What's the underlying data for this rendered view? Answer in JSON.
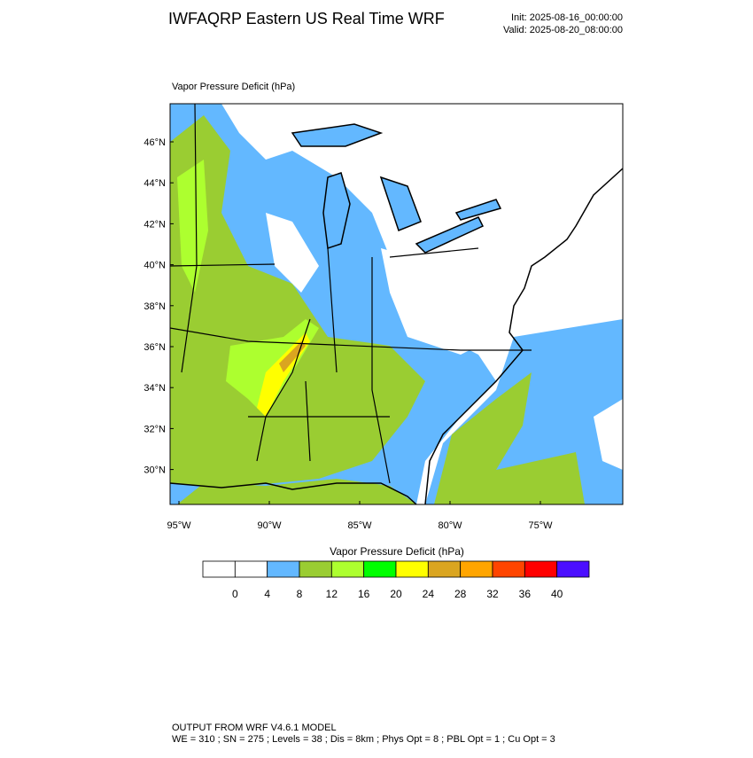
{
  "header": {
    "title": "IWFAQRP Eastern US Real Time WRF",
    "init": "Init: 2025-08-16_00:00:00",
    "valid": "Valid: 2025-08-20_08:00:00"
  },
  "map": {
    "subtitle": "Vapor Pressure Deficit   (hPa)",
    "lat_labels": [
      {
        "value": 46,
        "label": "46°N"
      },
      {
        "value": 44,
        "label": "44°N"
      },
      {
        "value": 42,
        "label": "42°N"
      },
      {
        "value": 40,
        "label": "40°N"
      },
      {
        "value": 38,
        "label": "38°N"
      },
      {
        "value": 36,
        "label": "36°N"
      },
      {
        "value": 34,
        "label": "34°N"
      },
      {
        "value": 32,
        "label": "32°N"
      },
      {
        "value": 30,
        "label": "30°N"
      }
    ],
    "lon_labels": [
      {
        "value": -95,
        "label": "95°W"
      },
      {
        "value": -90,
        "label": "90°W"
      },
      {
        "value": -85,
        "label": "85°W"
      },
      {
        "value": -80,
        "label": "80°W"
      },
      {
        "value": -75,
        "label": "75°W"
      }
    ]
  },
  "colorbar": {
    "title": "Vapor Pressure Deficit  (hPa)",
    "levels": [
      0,
      4,
      8,
      12,
      16,
      20,
      24,
      28,
      32,
      36,
      40
    ],
    "colors": [
      "#ffffff",
      "#ffffff",
      "#63b8ff",
      "#9acd32",
      "#adff2f",
      "#00ff00",
      "#ffff00",
      "#daa520",
      "#ffa500",
      "#ff4500",
      "#ff0000",
      "#4b0fff"
    ]
  },
  "footer": {
    "line1": "OUTPUT FROM WRF V4.6.1 MODEL",
    "line2": "WE = 310 ; SN = 275 ; Levels = 38 ; Dis = 8km ; Phys Opt = 8 ; PBL Opt = 1 ; Cu Opt = 3"
  }
}
